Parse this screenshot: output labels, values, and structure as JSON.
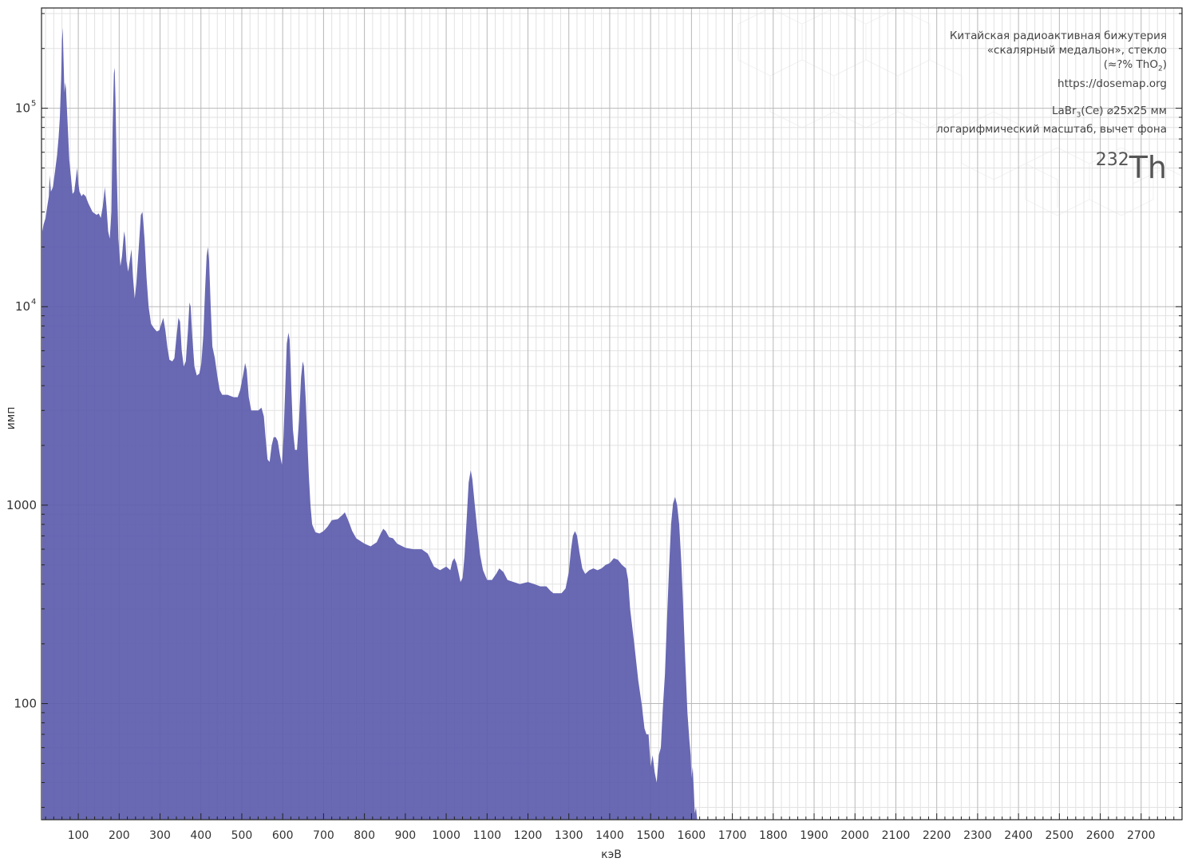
{
  "annotation": {
    "line1": "Китайская радиоактивная бижутерия",
    "line2": "«скалярный медальон», стекло",
    "line3_pre": "(≈?% ThO",
    "line3_sub": "2",
    "line3_post": ")",
    "line4": "https://dosemap.org",
    "line5_pre": "LaBr",
    "line5_sub": "3",
    "line5_post": "(Ce) ⌀25x25 мм",
    "line6": "логарифмический масштаб, вычет фона",
    "isotope_mass": "232",
    "isotope_symbol": "Th"
  },
  "colors": {
    "fill": "#5c5cad",
    "grid_major": "#b8b8b8",
    "grid_minor": "#e2e2e2",
    "axis": "#222222"
  },
  "chart_data": {
    "type": "area",
    "title": "",
    "xlabel": "кэВ",
    "ylabel": "имп",
    "x_scale": "linear",
    "y_scale": "log",
    "xlim": [
      10,
      2800
    ],
    "ylim": [
      26,
      320000
    ],
    "x_ticks": [
      100,
      200,
      300,
      400,
      500,
      600,
      700,
      800,
      900,
      1000,
      1100,
      1200,
      1300,
      1400,
      1500,
      1600,
      1700,
      1800,
      1900,
      2000,
      2100,
      2200,
      2300,
      2400,
      2500,
      2600,
      2700
    ],
    "y_ticks": [
      {
        "value": 100,
        "label": "100"
      },
      {
        "value": 1000,
        "label": "1000"
      },
      {
        "value": 10000,
        "label": "10",
        "exp": "4"
      },
      {
        "value": 100000,
        "label": "10",
        "exp": "5"
      }
    ],
    "grid": true,
    "series": [
      {
        "values": [
          [
            12,
            24000
          ],
          [
            15,
            26000
          ],
          [
            20,
            28000
          ],
          [
            25,
            33000
          ],
          [
            28,
            36000
          ],
          [
            30,
            46000
          ],
          [
            33,
            38000
          ],
          [
            38,
            40000
          ],
          [
            43,
            48000
          ],
          [
            48,
            58000
          ],
          [
            52,
            72000
          ],
          [
            55,
            90000
          ],
          [
            58,
            140000
          ],
          [
            60,
            220000
          ],
          [
            62,
            255000
          ],
          [
            64,
            170000
          ],
          [
            66,
            120000
          ],
          [
            68,
            135000
          ],
          [
            70,
            125000
          ],
          [
            72,
            100000
          ],
          [
            75,
            75000
          ],
          [
            78,
            55000
          ],
          [
            82,
            45000
          ],
          [
            86,
            37000
          ],
          [
            90,
            38000
          ],
          [
            94,
            44000
          ],
          [
            97,
            50000
          ],
          [
            100,
            42000
          ],
          [
            103,
            38000
          ],
          [
            108,
            36000
          ],
          [
            112,
            37000
          ],
          [
            118,
            36000
          ],
          [
            125,
            33000
          ],
          [
            135,
            30000
          ],
          [
            145,
            29000
          ],
          [
            150,
            29500
          ],
          [
            155,
            28000
          ],
          [
            160,
            32000
          ],
          [
            165,
            40000
          ],
          [
            169,
            32000
          ],
          [
            173,
            24000
          ],
          [
            177,
            22000
          ],
          [
            181,
            30000
          ],
          [
            184,
            80000
          ],
          [
            187,
            150000
          ],
          [
            189,
            160000
          ],
          [
            191,
            110000
          ],
          [
            194,
            50000
          ],
          [
            198,
            22000
          ],
          [
            203,
            16000
          ],
          [
            207,
            18000
          ],
          [
            212,
            24000
          ],
          [
            215,
            22000
          ],
          [
            218,
            17000
          ],
          [
            222,
            15000
          ],
          [
            226,
            17000
          ],
          [
            230,
            19500
          ],
          [
            234,
            14000
          ],
          [
            238,
            11000
          ],
          [
            242,
            13000
          ],
          [
            248,
            20000
          ],
          [
            253,
            29000
          ],
          [
            257,
            30000
          ],
          [
            262,
            22000
          ],
          [
            267,
            14000
          ],
          [
            272,
            10000
          ],
          [
            278,
            8200
          ],
          [
            285,
            7800
          ],
          [
            292,
            7500
          ],
          [
            298,
            7600
          ],
          [
            303,
            8200
          ],
          [
            308,
            8800
          ],
          [
            313,
            7600
          ],
          [
            318,
            6200
          ],
          [
            323,
            5400
          ],
          [
            330,
            5300
          ],
          [
            335,
            5500
          ],
          [
            340,
            7000
          ],
          [
            345,
            8800
          ],
          [
            349,
            8400
          ],
          [
            353,
            6000
          ],
          [
            358,
            5000
          ],
          [
            363,
            5300
          ],
          [
            368,
            7500
          ],
          [
            372,
            10500
          ],
          [
            375,
            10000
          ],
          [
            379,
            7000
          ],
          [
            384,
            5000
          ],
          [
            390,
            4500
          ],
          [
            396,
            4600
          ],
          [
            401,
            5200
          ],
          [
            406,
            7200
          ],
          [
            410,
            12000
          ],
          [
            414,
            18000
          ],
          [
            417,
            20000
          ],
          [
            420,
            17000
          ],
          [
            424,
            10000
          ],
          [
            428,
            6300
          ],
          [
            434,
            5500
          ],
          [
            440,
            4500
          ],
          [
            446,
            3800
          ],
          [
            452,
            3600
          ],
          [
            465,
            3600
          ],
          [
            480,
            3500
          ],
          [
            490,
            3500
          ],
          [
            496,
            3800
          ],
          [
            503,
            4500
          ],
          [
            508,
            5200
          ],
          [
            512,
            4800
          ],
          [
            517,
            3500
          ],
          [
            523,
            3000
          ],
          [
            540,
            3000
          ],
          [
            548,
            3100
          ],
          [
            554,
            2800
          ],
          [
            558,
            2200
          ],
          [
            563,
            1700
          ],
          [
            568,
            1650
          ],
          [
            573,
            2000
          ],
          [
            578,
            2200
          ],
          [
            583,
            2200
          ],
          [
            588,
            2100
          ],
          [
            593,
            1800
          ],
          [
            598,
            1600
          ],
          [
            602,
            2200
          ],
          [
            606,
            3800
          ],
          [
            610,
            6500
          ],
          [
            614,
            7400
          ],
          [
            617,
            6800
          ],
          [
            621,
            4000
          ],
          [
            625,
            2400
          ],
          [
            630,
            1900
          ],
          [
            635,
            1900
          ],
          [
            640,
            2700
          ],
          [
            645,
            4400
          ],
          [
            649,
            5300
          ],
          [
            652,
            5000
          ],
          [
            656,
            3500
          ],
          [
            660,
            2200
          ],
          [
            664,
            1400
          ],
          [
            668,
            1000
          ],
          [
            672,
            800
          ],
          [
            680,
            730
          ],
          [
            690,
            720
          ],
          [
            700,
            740
          ],
          [
            710,
            780
          ],
          [
            720,
            840
          ],
          [
            735,
            850
          ],
          [
            748,
            900
          ],
          [
            752,
            920
          ],
          [
            756,
            880
          ],
          [
            762,
            820
          ],
          [
            770,
            740
          ],
          [
            780,
            680
          ],
          [
            800,
            640
          ],
          [
            815,
            620
          ],
          [
            830,
            650
          ],
          [
            840,
            720
          ],
          [
            846,
            760
          ],
          [
            852,
            740
          ],
          [
            860,
            690
          ],
          [
            870,
            680
          ],
          [
            880,
            640
          ],
          [
            900,
            610
          ],
          [
            920,
            600
          ],
          [
            940,
            600
          ],
          [
            955,
            570
          ],
          [
            962,
            530
          ],
          [
            970,
            490
          ],
          [
            985,
            470
          ],
          [
            1000,
            490
          ],
          [
            1010,
            470
          ],
          [
            1015,
            520
          ],
          [
            1020,
            540
          ],
          [
            1025,
            510
          ],
          [
            1030,
            460
          ],
          [
            1035,
            410
          ],
          [
            1040,
            430
          ],
          [
            1045,
            560
          ],
          [
            1050,
            850
          ],
          [
            1055,
            1300
          ],
          [
            1060,
            1500
          ],
          [
            1064,
            1350
          ],
          [
            1070,
            1000
          ],
          [
            1076,
            750
          ],
          [
            1083,
            560
          ],
          [
            1090,
            470
          ],
          [
            1100,
            420
          ],
          [
            1112,
            420
          ],
          [
            1122,
            450
          ],
          [
            1130,
            480
          ],
          [
            1140,
            460
          ],
          [
            1150,
            420
          ],
          [
            1165,
            410
          ],
          [
            1180,
            400
          ],
          [
            1200,
            410
          ],
          [
            1215,
            400
          ],
          [
            1230,
            390
          ],
          [
            1245,
            390
          ],
          [
            1255,
            370
          ],
          [
            1262,
            360
          ],
          [
            1272,
            360
          ],
          [
            1282,
            360
          ],
          [
            1292,
            380
          ],
          [
            1300,
            460
          ],
          [
            1305,
            590
          ],
          [
            1310,
            700
          ],
          [
            1315,
            740
          ],
          [
            1320,
            700
          ],
          [
            1326,
            580
          ],
          [
            1333,
            480
          ],
          [
            1340,
            450
          ],
          [
            1350,
            470
          ],
          [
            1360,
            480
          ],
          [
            1370,
            470
          ],
          [
            1380,
            480
          ],
          [
            1390,
            500
          ],
          [
            1400,
            510
          ],
          [
            1410,
            540
          ],
          [
            1420,
            530
          ],
          [
            1430,
            500
          ],
          [
            1440,
            480
          ],
          [
            1445,
            420
          ],
          [
            1450,
            300
          ],
          [
            1460,
            200
          ],
          [
            1470,
            130
          ],
          [
            1478,
            100
          ],
          [
            1485,
            75
          ],
          [
            1490,
            70
          ],
          [
            1495,
            70
          ],
          [
            1500,
            48
          ],
          [
            1505,
            55
          ],
          [
            1510,
            45
          ],
          [
            1515,
            40
          ],
          [
            1520,
            55
          ],
          [
            1525,
            60
          ],
          [
            1530,
            95
          ],
          [
            1535,
            140
          ],
          [
            1540,
            260
          ],
          [
            1545,
            470
          ],
          [
            1550,
            800
          ],
          [
            1555,
            1020
          ],
          [
            1560,
            1100
          ],
          [
            1565,
            1000
          ],
          [
            1570,
            800
          ],
          [
            1575,
            520
          ],
          [
            1580,
            300
          ],
          [
            1585,
            160
          ],
          [
            1590,
            90
          ],
          [
            1595,
            65
          ],
          [
            1598,
            55
          ],
          [
            1600,
            42
          ],
          [
            1603,
            48
          ],
          [
            1606,
            36
          ],
          [
            1608,
            28
          ],
          [
            1611,
            30
          ],
          [
            1614,
            26
          ]
        ]
      }
    ]
  }
}
